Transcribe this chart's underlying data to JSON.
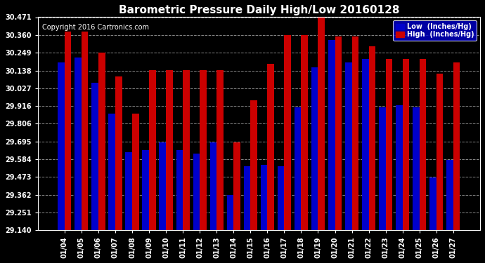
{
  "title": "Barometric Pressure Daily High/Low 20160128",
  "copyright": "Copyright 2016 Cartronics.com",
  "categories": [
    "01/04",
    "01/05",
    "01/06",
    "01/07",
    "01/08",
    "01/09",
    "01/10",
    "01/11",
    "01/12",
    "01/13",
    "01/14",
    "01/15",
    "01/16",
    "01/17",
    "01/18",
    "01/19",
    "01/20",
    "01/21",
    "01/22",
    "01/23",
    "01/24",
    "01/25",
    "01/26",
    "01/27"
  ],
  "low_values": [
    30.19,
    30.22,
    30.06,
    29.87,
    29.63,
    29.64,
    29.69,
    29.64,
    29.62,
    29.69,
    29.36,
    29.54,
    29.55,
    29.54,
    29.91,
    30.16,
    30.33,
    30.19,
    30.21,
    29.91,
    29.92,
    29.91,
    29.47,
    29.58
  ],
  "high_values": [
    30.38,
    30.38,
    30.25,
    30.1,
    29.87,
    30.14,
    30.14,
    30.14,
    30.14,
    30.14,
    29.69,
    29.95,
    30.18,
    30.36,
    30.36,
    30.47,
    30.35,
    30.35,
    30.29,
    30.21,
    30.21,
    30.21,
    30.12,
    30.19
  ],
  "low_color": "#0000cc",
  "high_color": "#cc0000",
  "bg_color": "#000000",
  "plot_bg_color": "#000000",
  "grid_color": "#888888",
  "yticks": [
    29.14,
    29.251,
    29.362,
    29.473,
    29.584,
    29.695,
    29.806,
    29.916,
    30.027,
    30.138,
    30.249,
    30.36,
    30.471
  ],
  "ymin": 29.14,
  "ymax": 30.471,
  "legend_low_label": "Low  (Inches/Hg)",
  "legend_high_label": "High  (Inches/Hg)",
  "title_fontsize": 11,
  "tick_fontsize": 7,
  "copyright_fontsize": 7
}
